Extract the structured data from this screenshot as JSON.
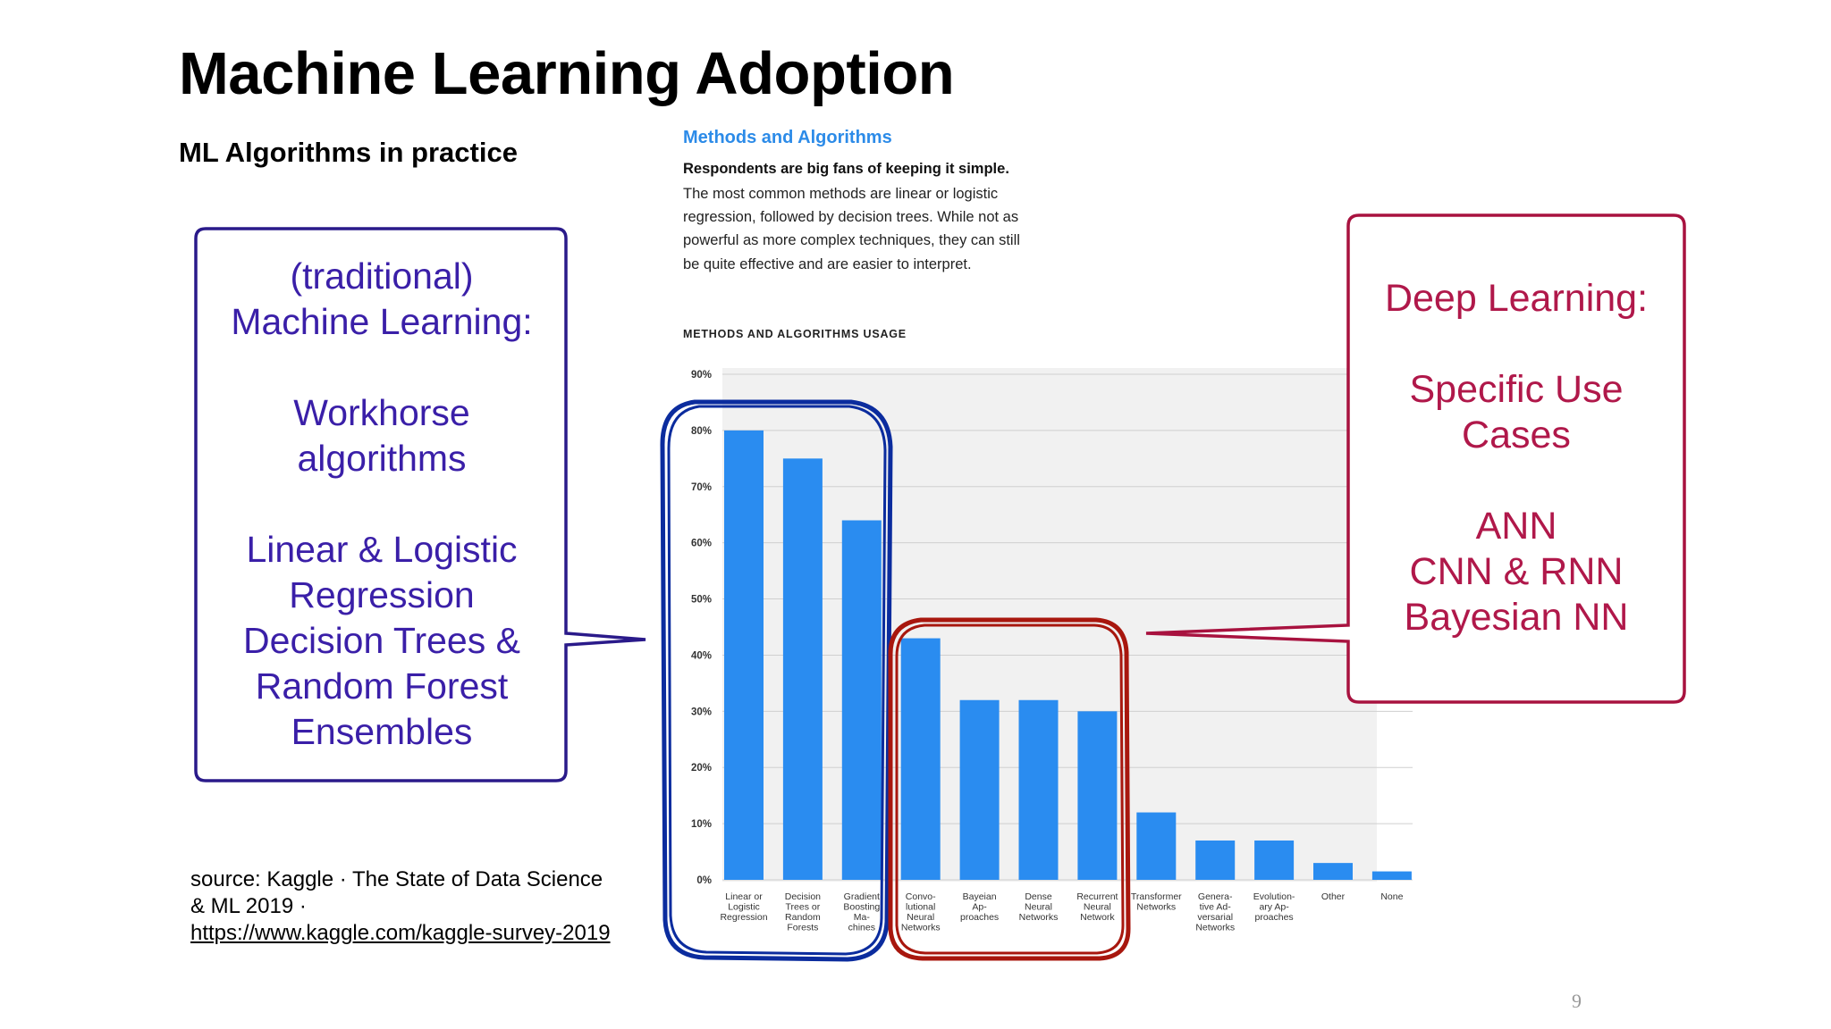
{
  "slide": {
    "title": "Machine Learning Adoption",
    "subtitle": "ML Algorithms in practice",
    "page_number": "9"
  },
  "article": {
    "heading": "Methods and Algorithms",
    "lead": "Respondents are big fans of keeping it simple.",
    "lines": [
      "The most common methods are linear or logistic",
      "regression, followed by decision trees. While not as",
      "powerful as more complex techniques, they can still",
      "be quite effective and are easier to interpret."
    ],
    "usage_heading": "METHODS AND ALGORITHMS USAGE"
  },
  "callout_left": {
    "lines": [
      "(traditional)",
      "Machine Learning:",
      "",
      "Workhorse",
      "algorithms",
      "",
      "Linear & Logistic",
      "Regression",
      "Decision Trees &",
      "Random Forest",
      "Ensembles"
    ],
    "color": "#3a1fa8",
    "border_color": "#2a1a8a"
  },
  "callout_right": {
    "lines": [
      "Deep Learning:",
      "",
      "Specific Use",
      "Cases",
      "",
      "ANN",
      "CNN & RNN",
      "Bayesian NN"
    ],
    "color": "#b0184a",
    "border_color": "#a8123f"
  },
  "highlight_colors": {
    "traditional": "#0b2c9e",
    "deep": "#a8170e"
  },
  "source": {
    "text_line1": "source: Kaggle · The State of Data Science",
    "text_line2": "& ML 2019 ·",
    "link": "https://www.kaggle.com/kaggle-survey-2019"
  },
  "chart_data": {
    "type": "bar",
    "title": "METHODS AND ALGORITHMS USAGE",
    "categories": [
      [
        "Linear or",
        "Logistic",
        "Regression"
      ],
      [
        "Decision",
        "Trees or",
        "Random",
        "Forests"
      ],
      [
        "Gradient",
        "Boosting",
        "Ma-",
        "chines"
      ],
      [
        "Convo-",
        "lutional",
        "Neural",
        "Networks"
      ],
      [
        "Bayeian",
        "Ap-",
        "proaches"
      ],
      [
        "Dense",
        "Neural",
        "Networks"
      ],
      [
        "Recurrent",
        "Neural",
        "Network"
      ],
      [
        "Transformer",
        "Networks"
      ],
      [
        "Genera-",
        "tive Ad-",
        "versarial",
        "Networks"
      ],
      [
        "Evolution-",
        "ary Ap-",
        "proaches"
      ],
      [
        "Other"
      ],
      [
        "None"
      ]
    ],
    "values": [
      80,
      75,
      64,
      43,
      32,
      32,
      30,
      12,
      7,
      7,
      3,
      1.5
    ],
    "ylim": [
      0,
      90
    ],
    "yticks": [
      "0%",
      "10%",
      "20%",
      "30%",
      "40%",
      "50%",
      "60%",
      "70%",
      "80%",
      "90%"
    ],
    "bar_color": "#2a8cf0",
    "grid": true
  }
}
